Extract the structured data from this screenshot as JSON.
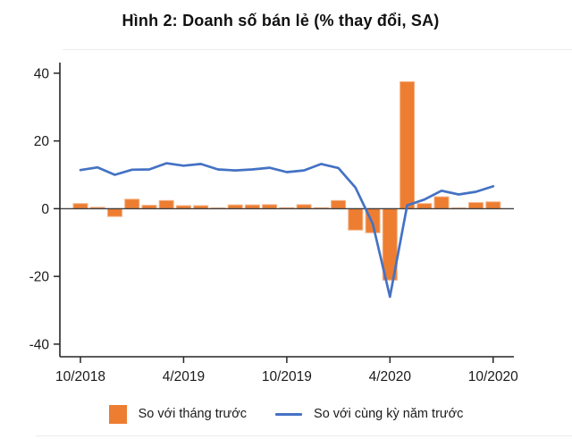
{
  "title": "Hình 2: Doanh số bán lẻ (% thay đổi, SA)",
  "colors": {
    "bar": "#ED7D31",
    "bar_edge": "#F4B183",
    "line": "#4472C4",
    "axis": "#262626",
    "zero_line": "#404040",
    "tick_text": "#1a1a1a"
  },
  "legend": {
    "bar_label": "So với tháng trước",
    "line_label": "So với cùng kỳ năm trước"
  },
  "chart_data": {
    "type": "bar+line",
    "title": "Hình 2: Doanh số bán lẻ (% thay đổi, SA)",
    "xlabel": "",
    "ylabel": "",
    "x": [
      "10/2018",
      "11/2018",
      "12/2018",
      "1/2019",
      "2/2019",
      "3/2019",
      "4/2019",
      "5/2019",
      "6/2019",
      "7/2019",
      "8/2019",
      "9/2019",
      "10/2019",
      "11/2019",
      "12/2019",
      "1/2020",
      "2/2020",
      "3/2020",
      "4/2020",
      "5/2020",
      "6/2020",
      "7/2020",
      "8/2020",
      "9/2020",
      "10/2020"
    ],
    "series": [
      {
        "name": "So với tháng trước",
        "type": "bar",
        "values": [
          1.5,
          0.4,
          -2.3,
          2.8,
          1.0,
          2.4,
          0.9,
          0.9,
          0.2,
          1.1,
          1.1,
          1.2,
          0.3,
          1.2,
          0.3,
          2.4,
          -6.3,
          -7.1,
          -21.1,
          37.5,
          1.5,
          3.5,
          0.2,
          1.8,
          2.0
        ]
      },
      {
        "name": "So với cùng kỳ năm trước",
        "type": "line",
        "values": [
          11.4,
          12.2,
          10.0,
          11.5,
          11.6,
          13.4,
          12.7,
          13.2,
          11.6,
          11.3,
          11.6,
          12.1,
          10.8,
          11.3,
          13.2,
          12.0,
          6.2,
          -4.5,
          -26.0,
          1.0,
          2.7,
          5.3,
          4.2,
          5.0,
          6.6
        ]
      }
    ],
    "xticks": [
      "10/2018",
      "4/2019",
      "10/2019",
      "4/2020",
      "10/2020"
    ],
    "xtick_indices": [
      0,
      6,
      12,
      18,
      24
    ],
    "yticks": [
      40,
      20,
      0,
      -20,
      -40
    ],
    "ylim": [
      -44,
      44
    ],
    "grid": false,
    "legend_position": "bottom"
  }
}
